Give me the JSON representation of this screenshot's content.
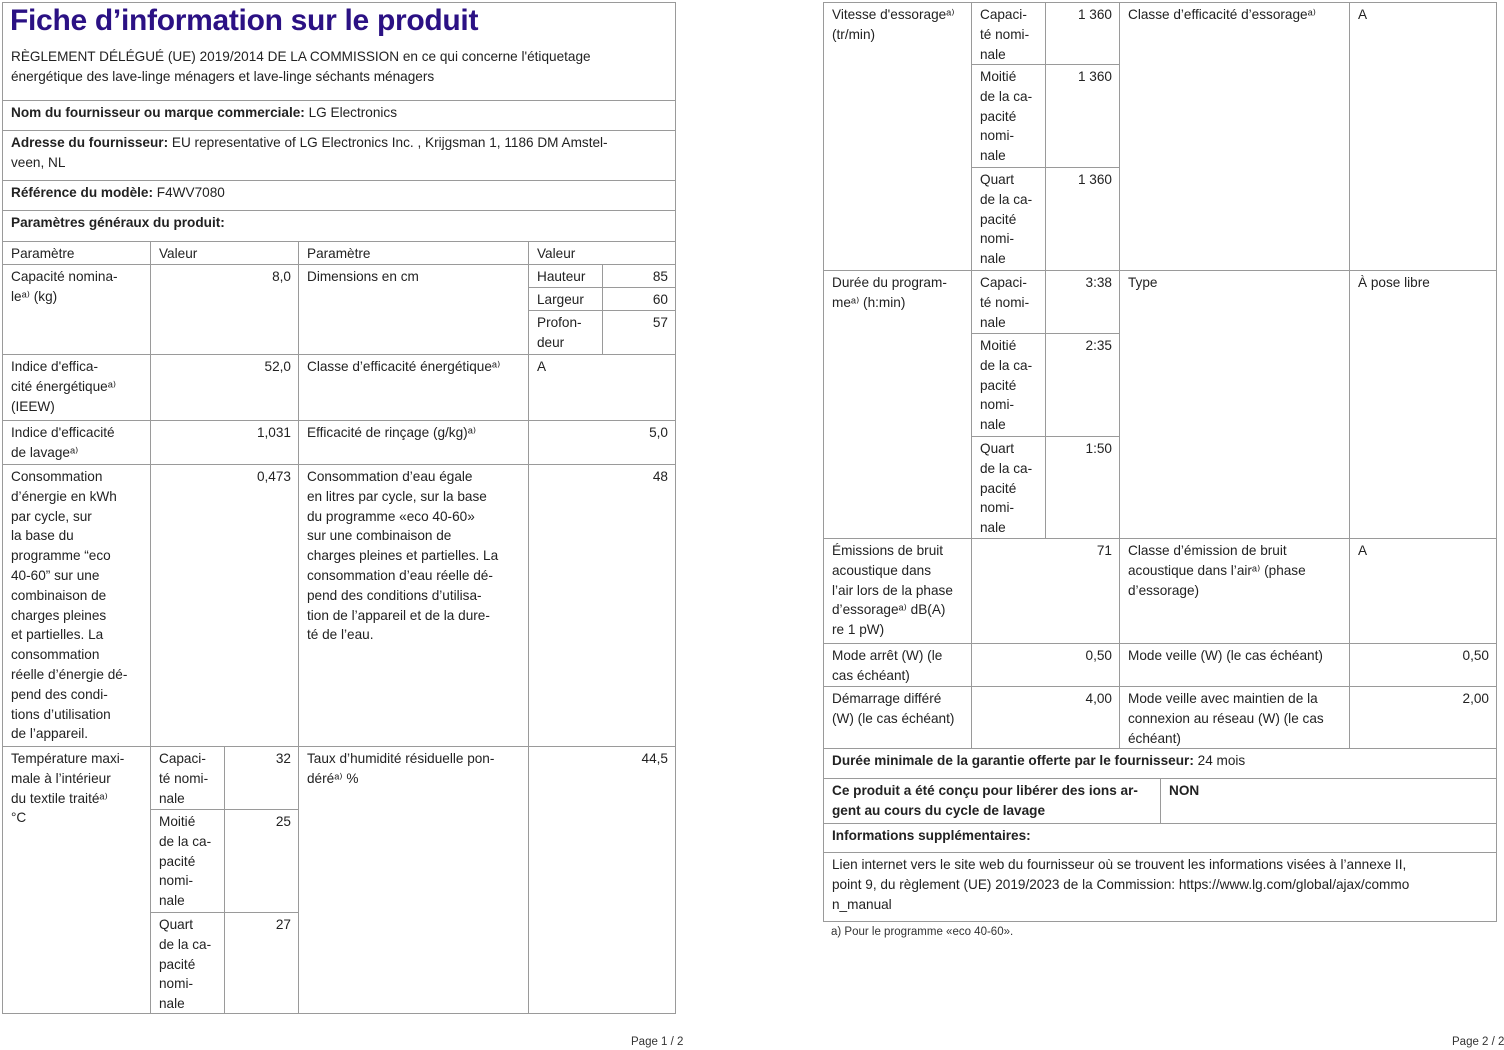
{
  "page1": {
    "title": "Fiche d’information sur le produit",
    "regulation": "RÈGLEMENT DÉLÉGUÉ (UE) 2019/2014 DE LA COMMISSION en ce qui concerne l'étiquetage\nénergétique des lave-linge ménagers et lave-linge séchants ménagers",
    "supplier_label": "Nom du fournisseur ou marque commerciale:",
    "supplier_value": "  LG Electronics",
    "address_label": "Adresse du fournisseur:",
    "address_value": "  EU representative of LG Electronics Inc. , Krijgsman 1, 1186 DM Amstel-\nveen, NL",
    "model_label": "Référence du modèle:",
    "model_value": "  F4WV7080",
    "general_label": "Paramètres généraux du produit:",
    "headers": [
      "Paramètre",
      "Valeur",
      "Paramètre",
      "Valeur"
    ],
    "capacity": {
      "label": "Capacité nomina-\nleᵃ⁾ (kg)",
      "value": "8,0"
    },
    "dimensions": {
      "label": "Dimensions en cm",
      "items": [
        {
          "label": "Hauteur",
          "value": "85"
        },
        {
          "label": "Largeur",
          "value": "60"
        },
        {
          "label": "Profon-\ndeur",
          "value": "57"
        }
      ]
    },
    "eei": {
      "label": "Indice d'effica-\ncité énergétiqueᵃ⁾\n(IEEW)",
      "value": "52,0"
    },
    "energy_class": {
      "label": "Classe d’efficacité énergétiqueᵃ⁾",
      "value": "A"
    },
    "wash_index": {
      "label": "Indice d'efficacité\nde lavageᵃ⁾",
      "value": "1,031"
    },
    "rinsing": {
      "label": "Efficacité de rinçage (g/kg)ᵃ⁾",
      "value": "5,0"
    },
    "energy_consumption": {
      "label": "Consommation\nd’énergie en kWh\npar cycle, sur\nla base du\nprogramme “eco\n40-60” sur une\ncombinaison de\ncharges pleines\net partielles. La\nconsommation\nréelle d’énergie dé-\npend des condi-\ntions d’utilisation\nde l’appareil.",
      "value": "0,473"
    },
    "water_consumption": {
      "label": "Consommation d’eau égale\nen litres par cycle, sur la base\ndu programme «eco 40-60»\nsur une combinaison de\ncharges pleines et partielles. La\nconsommation d’eau réelle dé-\npend des conditions d’utilisa-\ntion de l’appareil et de la dure-\nté de l’eau.",
      "value": "48"
    },
    "max_temp": {
      "label": "Température maxi-\nmale à l’intérieur\ndu textile traitéᵃ⁾\n°C",
      "items": [
        {
          "label": "Capaci-\nté nomi-\nnale",
          "value": "32"
        },
        {
          "label": "Moitié\nde la ca-\npacité\nnomi-\nnale",
          "value": "25"
        },
        {
          "label": "Quart\nde la ca-\npacité\nnomi-\nnale",
          "value": "27"
        }
      ]
    },
    "moisture": {
      "label": "Taux d’humidité résiduelle pon-\ndéréᵃ⁾ %",
      "value": "44,5"
    },
    "page_number": "Page 1 / 2"
  },
  "page2": {
    "spin_speed": {
      "label": "Vitesse d'essorageᵃ⁾\n(tr/min)",
      "items": [
        {
          "label": "Capaci-\nté nomi-\nnale",
          "value": "1 360"
        },
        {
          "label": "Moitié\nde la ca-\npacité\nnomi-\nnale",
          "value": "1 360"
        },
        {
          "label": "Quart\nde la ca-\npacité\nnomi-\nnale",
          "value": "1 360"
        }
      ]
    },
    "spin_class": {
      "label": "Classe d’efficacité d’essorageᵃ⁾",
      "value": "A"
    },
    "duration": {
      "label": "Durée du program-\nmeᵃ⁾ (h:min)",
      "items": [
        {
          "label": "Capaci-\nté nomi-\nnale",
          "value": "3:38"
        },
        {
          "label": "Moitié\nde la ca-\npacité\nnomi-\nnale",
          "value": "2:35"
        },
        {
          "label": "Quart\nde la ca-\npacité\nnomi-\nnale",
          "value": "1:50"
        }
      ]
    },
    "type": {
      "label": "Type",
      "value": "À pose libre"
    },
    "noise": {
      "label": "Émissions de bruit\nacoustique dans\nl’air lors de la phase\nd’essorageᵃ⁾ dB(A)\nre 1 pW)",
      "value": "71"
    },
    "noise_class": {
      "label": "Classe d’émission de bruit\nacoustique dans l’airᵃ⁾ (phase\nd’essorage)",
      "value": "A"
    },
    "off_mode": {
      "label": "Mode arrêt (W) (le\ncas échéant)",
      "value": "0,50"
    },
    "standby": {
      "label": "Mode veille (W) (le cas échéant)",
      "value": "0,50"
    },
    "delay_start": {
      "label": "Démarrage différé\n(W) (le cas échéant)",
      "value": "4,00"
    },
    "networked_standby": {
      "label": "Mode veille avec maintien de la\nconnexion au réseau (W) (le cas\néchéant)",
      "value": "2,00"
    },
    "guarantee_label": "Durée minimale de la garantie offerte par le fournisseur:",
    "guarantee_value": "  24 mois",
    "silver_label": "Ce produit a été conçu pour libérer des ions ar-\ngent au cours du cycle de lavage",
    "silver_value": "NON",
    "additional_label": "Informations supplémentaires:",
    "link_text": "Lien internet vers le site web du fournisseur où se trouvent les informations visées à l’annexe II,\npoint 9, du règlement (UE) 2019/2023 de la Commission: ",
    "link_url": " https://www.lg.com/global/ajax/commo\nn_manual",
    "footnote": "a) Pour le programme «eco 40-60».",
    "page_number": "Page 2 / 2"
  },
  "colors": {
    "title": "#2b1184",
    "border": "#9a9a9a"
  }
}
